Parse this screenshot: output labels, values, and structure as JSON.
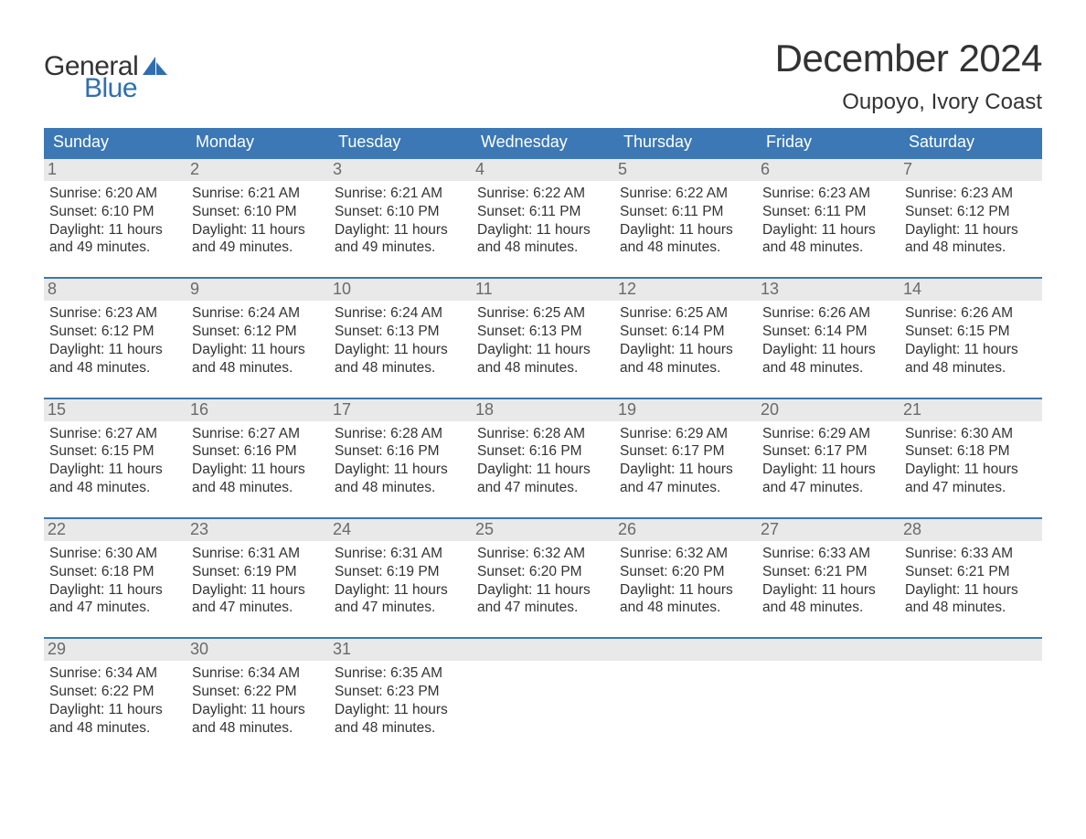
{
  "brand": {
    "general": "General",
    "blue": "Blue",
    "sail_color": "#2f6fb0"
  },
  "title": {
    "month": "December 2024",
    "location": "Oupoyo, Ivory Coast"
  },
  "colors": {
    "header_bg": "#3b78b5",
    "header_text": "#ffffff",
    "week_border": "#3b78b5",
    "daynum_bg": "#e9e9e9",
    "daynum_text": "#6a6a6a",
    "body_text": "#333333",
    "page_bg": "#ffffff"
  },
  "dow": [
    "Sunday",
    "Monday",
    "Tuesday",
    "Wednesday",
    "Thursday",
    "Friday",
    "Saturday"
  ],
  "weeks": [
    [
      {
        "n": "1",
        "sr": "6:20 AM",
        "ss": "6:10 PM",
        "dl": "11 hours and 49 minutes."
      },
      {
        "n": "2",
        "sr": "6:21 AM",
        "ss": "6:10 PM",
        "dl": "11 hours and 49 minutes."
      },
      {
        "n": "3",
        "sr": "6:21 AM",
        "ss": "6:10 PM",
        "dl": "11 hours and 49 minutes."
      },
      {
        "n": "4",
        "sr": "6:22 AM",
        "ss": "6:11 PM",
        "dl": "11 hours and 48 minutes."
      },
      {
        "n": "5",
        "sr": "6:22 AM",
        "ss": "6:11 PM",
        "dl": "11 hours and 48 minutes."
      },
      {
        "n": "6",
        "sr": "6:23 AM",
        "ss": "6:11 PM",
        "dl": "11 hours and 48 minutes."
      },
      {
        "n": "7",
        "sr": "6:23 AM",
        "ss": "6:12 PM",
        "dl": "11 hours and 48 minutes."
      }
    ],
    [
      {
        "n": "8",
        "sr": "6:23 AM",
        "ss": "6:12 PM",
        "dl": "11 hours and 48 minutes."
      },
      {
        "n": "9",
        "sr": "6:24 AM",
        "ss": "6:12 PM",
        "dl": "11 hours and 48 minutes."
      },
      {
        "n": "10",
        "sr": "6:24 AM",
        "ss": "6:13 PM",
        "dl": "11 hours and 48 minutes."
      },
      {
        "n": "11",
        "sr": "6:25 AM",
        "ss": "6:13 PM",
        "dl": "11 hours and 48 minutes."
      },
      {
        "n": "12",
        "sr": "6:25 AM",
        "ss": "6:14 PM",
        "dl": "11 hours and 48 minutes."
      },
      {
        "n": "13",
        "sr": "6:26 AM",
        "ss": "6:14 PM",
        "dl": "11 hours and 48 minutes."
      },
      {
        "n": "14",
        "sr": "6:26 AM",
        "ss": "6:15 PM",
        "dl": "11 hours and 48 minutes."
      }
    ],
    [
      {
        "n": "15",
        "sr": "6:27 AM",
        "ss": "6:15 PM",
        "dl": "11 hours and 48 minutes."
      },
      {
        "n": "16",
        "sr": "6:27 AM",
        "ss": "6:16 PM",
        "dl": "11 hours and 48 minutes."
      },
      {
        "n": "17",
        "sr": "6:28 AM",
        "ss": "6:16 PM",
        "dl": "11 hours and 48 minutes."
      },
      {
        "n": "18",
        "sr": "6:28 AM",
        "ss": "6:16 PM",
        "dl": "11 hours and 47 minutes."
      },
      {
        "n": "19",
        "sr": "6:29 AM",
        "ss": "6:17 PM",
        "dl": "11 hours and 47 minutes."
      },
      {
        "n": "20",
        "sr": "6:29 AM",
        "ss": "6:17 PM",
        "dl": "11 hours and 47 minutes."
      },
      {
        "n": "21",
        "sr": "6:30 AM",
        "ss": "6:18 PM",
        "dl": "11 hours and 47 minutes."
      }
    ],
    [
      {
        "n": "22",
        "sr": "6:30 AM",
        "ss": "6:18 PM",
        "dl": "11 hours and 47 minutes."
      },
      {
        "n": "23",
        "sr": "6:31 AM",
        "ss": "6:19 PM",
        "dl": "11 hours and 47 minutes."
      },
      {
        "n": "24",
        "sr": "6:31 AM",
        "ss": "6:19 PM",
        "dl": "11 hours and 47 minutes."
      },
      {
        "n": "25",
        "sr": "6:32 AM",
        "ss": "6:20 PM",
        "dl": "11 hours and 47 minutes."
      },
      {
        "n": "26",
        "sr": "6:32 AM",
        "ss": "6:20 PM",
        "dl": "11 hours and 48 minutes."
      },
      {
        "n": "27",
        "sr": "6:33 AM",
        "ss": "6:21 PM",
        "dl": "11 hours and 48 minutes."
      },
      {
        "n": "28",
        "sr": "6:33 AM",
        "ss": "6:21 PM",
        "dl": "11 hours and 48 minutes."
      }
    ],
    [
      {
        "n": "29",
        "sr": "6:34 AM",
        "ss": "6:22 PM",
        "dl": "11 hours and 48 minutes."
      },
      {
        "n": "30",
        "sr": "6:34 AM",
        "ss": "6:22 PM",
        "dl": "11 hours and 48 minutes."
      },
      {
        "n": "31",
        "sr": "6:35 AM",
        "ss": "6:23 PM",
        "dl": "11 hours and 48 minutes."
      },
      null,
      null,
      null,
      null
    ]
  ],
  "labels": {
    "sunrise": "Sunrise: ",
    "sunset": "Sunset: ",
    "daylight": "Daylight: "
  }
}
